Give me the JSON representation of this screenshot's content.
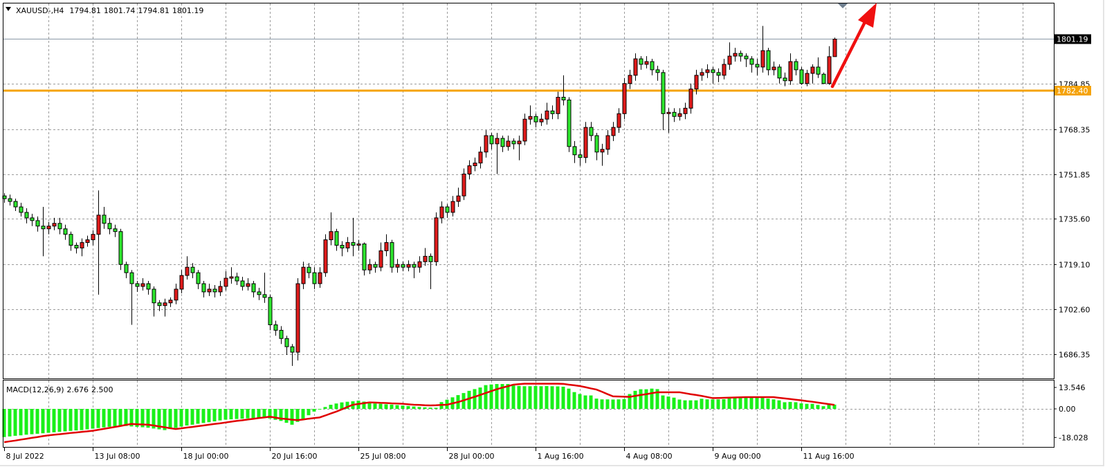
{
  "header": {
    "symbol": "XAUUSD-,H4",
    "open": "1794.81",
    "high": "1801.74",
    "low": "1794.81",
    "close": "1801.19"
  },
  "macd_label": {
    "name": "MACD(12,26,9)",
    "macd": "2.676",
    "signal": "2.500"
  },
  "price_axis": {
    "ticks": [
      "1686.35",
      "1702.60",
      "1719.10",
      "1735.60",
      "1751.85",
      "1768.35",
      "1784.85"
    ],
    "bid_label": "1801.19",
    "level_label": "1782.40"
  },
  "macd_axis": {
    "ticks": [
      "13.546",
      "0.00",
      "-18.028"
    ]
  },
  "time_axis": {
    "labels": [
      "8 Jul 2022",
      "13 Jul 08:00",
      "18 Jul 00:00",
      "20 Jul 16:00",
      "25 Jul 08:00",
      "28 Jul 00:00",
      "1 Aug 16:00",
      "4 Aug 08:00",
      "9 Aug 00:00",
      "11 Aug 16:00"
    ]
  },
  "colors": {
    "bull": "#e01b1b",
    "bear": "#2ee62e",
    "level": "#f5a30a",
    "macd_hist": "#19f019",
    "macd_signal": "#e00000",
    "arrow": "#f01010",
    "bid_line": "#8a98a6"
  },
  "chart_data": {
    "type": "candlestick",
    "timeframe": "H4",
    "price_range": [
      1680,
      1808
    ],
    "grid": true,
    "horizontal_levels": [
      {
        "price": 1782.4,
        "color": "#f5a30a"
      },
      {
        "price": 1801.19,
        "color": "#8a98a6"
      }
    ],
    "annotation": {
      "type": "arrow",
      "direction": "up",
      "color": "#f01010"
    },
    "candles": [
      [
        1744,
        1745,
        1741.5,
        1743
      ],
      [
        1743,
        1744.5,
        1740.5,
        1742
      ],
      [
        1742,
        1743,
        1738.5,
        1740
      ],
      [
        1740,
        1741.5,
        1736.5,
        1738
      ],
      [
        1738,
        1739.5,
        1734,
        1736
      ],
      [
        1736,
        1737.5,
        1733,
        1735
      ],
      [
        1735,
        1736.5,
        1731,
        1733
      ],
      [
        1733,
        1740,
        1722,
        1732
      ],
      [
        1732,
        1734.5,
        1730,
        1733
      ],
      [
        1733,
        1736,
        1731.5,
        1734
      ],
      [
        1734,
        1736,
        1730,
        1732
      ],
      [
        1732,
        1733.5,
        1728,
        1730
      ],
      [
        1730,
        1731,
        1724,
        1726
      ],
      [
        1726,
        1727,
        1723,
        1725
      ],
      [
        1725,
        1728.5,
        1722,
        1727
      ],
      [
        1727,
        1729.5,
        1725.5,
        1728
      ],
      [
        1728,
        1731.5,
        1726,
        1730
      ],
      [
        1730,
        1746,
        1708,
        1737
      ],
      [
        1737,
        1740,
        1732,
        1734
      ],
      [
        1734,
        1736,
        1730,
        1732
      ],
      [
        1732,
        1733.5,
        1729,
        1731
      ],
      [
        1731,
        1732,
        1717,
        1719
      ],
      [
        1719,
        1720,
        1714,
        1716
      ],
      [
        1716,
        1717,
        1697,
        1712
      ],
      [
        1712,
        1713,
        1709,
        1711
      ],
      [
        1711,
        1714,
        1709.5,
        1712
      ],
      [
        1712,
        1713,
        1708,
        1710
      ],
      [
        1710,
        1711,
        1700,
        1705
      ],
      [
        1705,
        1706,
        1702,
        1704
      ],
      [
        1704,
        1706.5,
        1700,
        1705
      ],
      [
        1705,
        1707,
        1703.5,
        1706
      ],
      [
        1706,
        1712,
        1704.5,
        1710
      ],
      [
        1710,
        1717,
        1708.5,
        1715
      ],
      [
        1715,
        1722,
        1713.5,
        1718
      ],
      [
        1718,
        1719.5,
        1714,
        1716
      ],
      [
        1716,
        1717,
        1710,
        1712
      ],
      [
        1712,
        1713,
        1707,
        1709
      ],
      [
        1709,
        1712,
        1707.5,
        1710
      ],
      [
        1710,
        1711.5,
        1707,
        1709
      ],
      [
        1709,
        1713,
        1707.5,
        1711
      ],
      [
        1711,
        1716.5,
        1709.5,
        1714
      ],
      [
        1714,
        1718,
        1712,
        1714.5
      ],
      [
        1714.5,
        1716,
        1711.5,
        1713
      ],
      [
        1713,
        1714.5,
        1709.5,
        1711
      ],
      [
        1711,
        1714,
        1709.5,
        1712
      ],
      [
        1712,
        1713,
        1707,
        1709
      ],
      [
        1709,
        1710.5,
        1706,
        1708
      ],
      [
        1708,
        1716,
        1705,
        1707
      ],
      [
        1707,
        1708,
        1695,
        1697
      ],
      [
        1697,
        1698.5,
        1693,
        1695
      ],
      [
        1695,
        1696.5,
        1690,
        1692
      ],
      [
        1692,
        1693,
        1686,
        1689
      ],
      [
        1689,
        1690,
        1682,
        1687
      ],
      [
        1687,
        1714,
        1684,
        1712
      ],
      [
        1712,
        1720,
        1710,
        1718
      ],
      [
        1718,
        1719.5,
        1714,
        1716
      ],
      [
        1716,
        1718,
        1710,
        1712
      ],
      [
        1712,
        1718,
        1710.5,
        1716
      ],
      [
        1716,
        1730,
        1714.5,
        1728
      ],
      [
        1728,
        1738,
        1726,
        1731
      ],
      [
        1731,
        1732,
        1724,
        1726
      ],
      [
        1726,
        1727.5,
        1722,
        1725
      ],
      [
        1725,
        1729,
        1723.5,
        1727
      ],
      [
        1727,
        1736,
        1722,
        1726
      ],
      [
        1726,
        1728,
        1724,
        1726.5
      ],
      [
        1726.5,
        1727,
        1715,
        1717
      ],
      [
        1717,
        1721,
        1715.5,
        1719
      ],
      [
        1719,
        1720,
        1716,
        1718
      ],
      [
        1718,
        1727,
        1716.5,
        1724
      ],
      [
        1724,
        1730,
        1722,
        1727
      ],
      [
        1727,
        1728,
        1716,
        1718
      ],
      [
        1718,
        1721,
        1716,
        1719
      ],
      [
        1719,
        1720,
        1716.5,
        1718
      ],
      [
        1718,
        1720.5,
        1716.5,
        1719
      ],
      [
        1719,
        1720,
        1714,
        1718
      ],
      [
        1718,
        1722,
        1716,
        1720
      ],
      [
        1720,
        1725,
        1718.5,
        1722
      ],
      [
        1722,
        1723,
        1710,
        1720
      ],
      [
        1720,
        1738,
        1718.5,
        1736
      ],
      [
        1736,
        1742,
        1734,
        1740
      ],
      [
        1740,
        1741,
        1736,
        1738
      ],
      [
        1738,
        1744,
        1736.5,
        1742
      ],
      [
        1742,
        1747,
        1740,
        1744
      ],
      [
        1744,
        1754,
        1742.5,
        1752
      ],
      [
        1752,
        1757,
        1750,
        1755
      ],
      [
        1755,
        1758,
        1753,
        1756
      ],
      [
        1756,
        1762,
        1754,
        1760
      ],
      [
        1760,
        1768,
        1758,
        1766
      ],
      [
        1766,
        1767,
        1761,
        1763
      ],
      [
        1763,
        1767,
        1752,
        1765
      ],
      [
        1765,
        1766,
        1760,
        1762
      ],
      [
        1762,
        1766,
        1760.5,
        1764
      ],
      [
        1764,
        1765,
        1761,
        1763
      ],
      [
        1763,
        1766,
        1757,
        1764
      ],
      [
        1764,
        1774,
        1762.5,
        1772
      ],
      [
        1772,
        1777,
        1770,
        1773
      ],
      [
        1773,
        1774,
        1769,
        1771
      ],
      [
        1771,
        1774,
        1769.5,
        1772
      ],
      [
        1772,
        1778,
        1770,
        1775
      ],
      [
        1775,
        1777,
        1772,
        1774
      ],
      [
        1774,
        1782,
        1772,
        1780
      ],
      [
        1780,
        1788,
        1777,
        1779
      ],
      [
        1779,
        1780,
        1760,
        1762
      ],
      [
        1762,
        1764,
        1756,
        1759
      ],
      [
        1759,
        1761,
        1755,
        1758
      ],
      [
        1758,
        1771,
        1756,
        1769
      ],
      [
        1769,
        1771,
        1764,
        1766
      ],
      [
        1766,
        1767,
        1757,
        1760
      ],
      [
        1760,
        1763,
        1755,
        1761
      ],
      [
        1761,
        1768,
        1759,
        1766
      ],
      [
        1766,
        1771,
        1764,
        1769
      ],
      [
        1769,
        1776,
        1767,
        1774
      ],
      [
        1774,
        1787,
        1772,
        1785
      ],
      [
        1785,
        1790,
        1783,
        1788
      ],
      [
        1788,
        1796,
        1786,
        1794
      ],
      [
        1794,
        1795,
        1790,
        1792
      ],
      [
        1792,
        1795,
        1790.5,
        1793
      ],
      [
        1793,
        1794,
        1788,
        1790
      ],
      [
        1790,
        1791.5,
        1786,
        1789
      ],
      [
        1789,
        1790,
        1768,
        1774
      ],
      [
        1774,
        1776,
        1767,
        1774.5
      ],
      [
        1774.5,
        1776,
        1771,
        1773
      ],
      [
        1773,
        1776,
        1771.5,
        1774
      ],
      [
        1774,
        1778,
        1772,
        1776
      ],
      [
        1776,
        1785,
        1774,
        1783
      ],
      [
        1783,
        1790,
        1781,
        1788
      ],
      [
        1788,
        1790.5,
        1786,
        1789
      ],
      [
        1789,
        1792,
        1787,
        1790
      ],
      [
        1790,
        1791,
        1785,
        1789
      ],
      [
        1789,
        1790.5,
        1785.5,
        1788
      ],
      [
        1788,
        1794,
        1786.5,
        1792
      ],
      [
        1792,
        1800,
        1790,
        1795
      ],
      [
        1795,
        1798,
        1793,
        1796
      ],
      [
        1796,
        1797,
        1793,
        1795
      ],
      [
        1795,
        1796,
        1791,
        1794
      ],
      [
        1794,
        1795,
        1789,
        1792
      ],
      [
        1792,
        1794,
        1788,
        1791
      ],
      [
        1791,
        1806,
        1789,
        1797
      ],
      [
        1797,
        1798,
        1788,
        1790
      ],
      [
        1790,
        1793,
        1788,
        1791
      ],
      [
        1791,
        1792,
        1785,
        1787
      ],
      [
        1787,
        1789,
        1784,
        1786
      ],
      [
        1786,
        1796,
        1784.5,
        1793
      ],
      [
        1793,
        1794,
        1788,
        1790
      ],
      [
        1790,
        1791,
        1784.5,
        1785
      ],
      [
        1785,
        1790,
        1784,
        1788.7
      ],
      [
        1788.7,
        1792,
        1785,
        1791
      ],
      [
        1791,
        1794.5,
        1787,
        1788.4
      ],
      [
        1788.4,
        1789,
        1784.8,
        1785
      ],
      [
        1785,
        1798.6,
        1784.5,
        1794.8
      ],
      [
        1794.81,
        1801.74,
        1794.81,
        1801.19
      ]
    ],
    "macd": {
      "params": [
        12,
        26,
        9
      ],
      "range": [
        -18.028,
        13.546
      ],
      "histogram": [
        -17.8,
        -17.4,
        -17.0,
        -16.7,
        -16.3,
        -16.0,
        -15.7,
        -15.4,
        -15.1,
        -14.8,
        -14.5,
        -14.2,
        -13.9,
        -13.6,
        -13.4,
        -12.9,
        -12.5,
        -12.1,
        -11.7,
        -11.3,
        -10.9,
        -10.5,
        -10.8,
        -11.1,
        -11.4,
        -11.6,
        -11.9,
        -12.4,
        -12.9,
        -13.4,
        -12.7,
        -12.0,
        -11.2,
        -10.5,
        -10.0,
        -9.4,
        -8.9,
        -8.4,
        -7.9,
        -7.3,
        -6.8,
        -6.6,
        -6.4,
        -6.2,
        -6.0,
        -5.8,
        -5.6,
        -5.4,
        -6.1,
        -6.9,
        -7.6,
        -8.8,
        -10.0,
        -8.2,
        -6.3,
        -4.0,
        -1.7,
        -0.3,
        1.2,
        2.6,
        3.4,
        4.1,
        4.5,
        4.8,
        5.2,
        4.6,
        4.0,
        3.4,
        3.2,
        2.9,
        2.7,
        2.4,
        2.1,
        1.8,
        1.5,
        1.2,
        1.0,
        0.8,
        0.7,
        4.3,
        5.8,
        7.3,
        8.7,
        10.0,
        11.4,
        12.5,
        13.5,
        15.0,
        15.4,
        15.7,
        15.7,
        15.7,
        14.8,
        14.5,
        14.3,
        14.3,
        14.4,
        14.3,
        14.4,
        14.3,
        14.2,
        14.0,
        12.8,
        10.6,
        9.4,
        8.5,
        8.5,
        6.5,
        6.0,
        6.0,
        5.9,
        6.0,
        6.2,
        9.4,
        11.4,
        12.4,
        12.4,
        12.8,
        12.5,
        8.5,
        7.8,
        7.1,
        5.9,
        5.4,
        5.4,
        5.4,
        6.4,
        6.0,
        6.0,
        6.0,
        6.1,
        7.4,
        7.4,
        7.4,
        7.1,
        7.1,
        7.1,
        7.1,
        6.5,
        6.0,
        5.4,
        4.2,
        4.4,
        4.2,
        3.5,
        3.2,
        3.2,
        2.5,
        1.7,
        2.7,
        2.676
      ],
      "signal": [
        -21.0,
        -20.5,
        -20.0,
        -19.4,
        -18.9,
        -18.3,
        -17.8,
        -17.2,
        -16.7,
        -16.3,
        -16.0,
        -15.6,
        -15.2,
        -14.9,
        -14.5,
        -14.2,
        -13.8,
        -13.2,
        -12.6,
        -12.0,
        -11.4,
        -10.8,
        -10.1,
        -9.5,
        -9.7,
        -9.8,
        -10.0,
        -10.5,
        -11.1,
        -11.6,
        -12.2,
        -12.7,
        -12.3,
        -11.8,
        -11.4,
        -10.9,
        -10.5,
        -10.0,
        -9.5,
        -9.1,
        -8.6,
        -8.1,
        -7.6,
        -7.2,
        -6.7,
        -6.3,
        -5.8,
        -5.4,
        -4.9,
        -5.5,
        -6.1,
        -6.4,
        -6.8,
        -7.1,
        -6.7,
        -6.2,
        -5.8,
        -5.4,
        -4.2,
        -2.9,
        -1.7,
        -0.3,
        1.2,
        2.6,
        3.1,
        3.6,
        4.1,
        4.0,
        3.8,
        3.7,
        3.5,
        3.4,
        3.2,
        2.9,
        2.6,
        2.5,
        2.3,
        2.2,
        2.3,
        2.5,
        2.6,
        3.5,
        4.3,
        5.4,
        6.5,
        7.6,
        8.8,
        10.0,
        11.2,
        12.4,
        13.4,
        14.3,
        15.3,
        15.6,
        15.9,
        15.9,
        15.9,
        15.9,
        15.9,
        15.9,
        15.9,
        15.8,
        15.3,
        14.9,
        14.4,
        13.7,
        12.9,
        12.2,
        10.8,
        9.3,
        7.9,
        7.8,
        7.7,
        7.6,
        8.2,
        8.8,
        9.3,
        9.9,
        10.5,
        10.5,
        10.5,
        10.5,
        10.5,
        9.9,
        9.3,
        8.8,
        8.2,
        7.5,
        6.8,
        6.9,
        7.0,
        7.1,
        7.2,
        7.3,
        7.4,
        7.4,
        7.4,
        7.4,
        7.4,
        7.4,
        7.0,
        6.6,
        6.2,
        5.8,
        5.4,
        4.9,
        4.5,
        4.0,
        3.5,
        3.0,
        2.5
      ]
    }
  }
}
